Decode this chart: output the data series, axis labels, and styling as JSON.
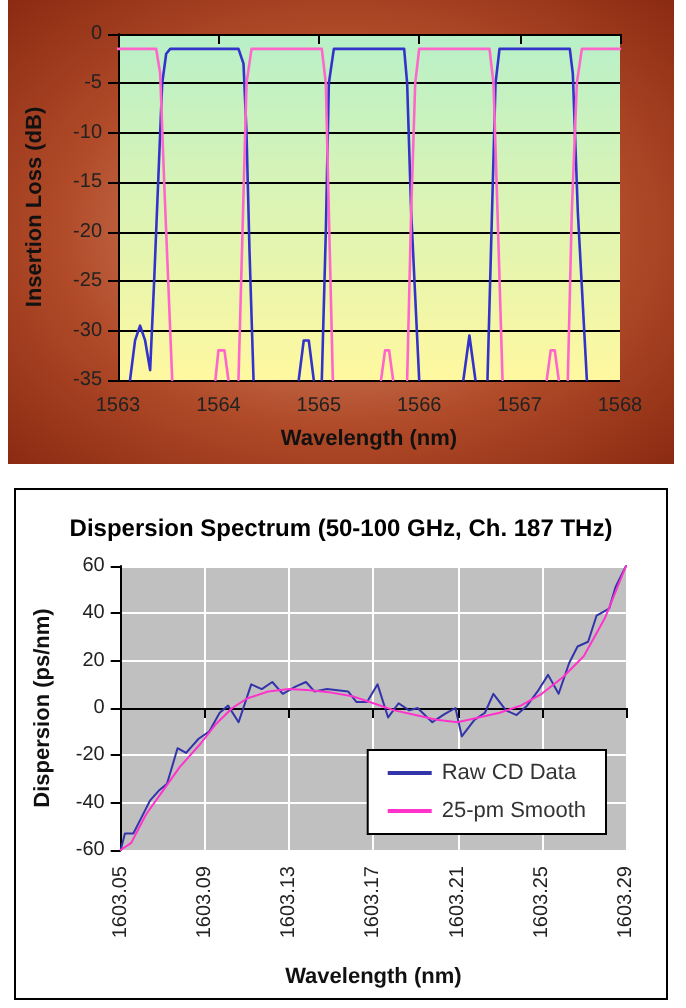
{
  "chart_data": [
    {
      "type": "line",
      "xlabel": "Wavelength (nm)",
      "ylabel": "Insertion Loss (dB)",
      "xlim": [
        1563,
        1568
      ],
      "ylim": [
        -35,
        0
      ],
      "xticks": [
        1563,
        1564,
        1565,
        1566,
        1567,
        1568
      ],
      "yticks": [
        -35,
        -30,
        -25,
        -20,
        -15,
        -10,
        -5,
        0
      ],
      "grid": "y",
      "legend": false,
      "marker": "none",
      "line_style": "solid",
      "series": [
        {
          "color": "#3333cc",
          "x": [
            1563.12,
            1563.17,
            1563.22,
            1563.27,
            1563.32,
            1563.36,
            1563.4,
            1563.44,
            1563.48,
            1563.52,
            1564.2,
            1564.25,
            1564.28,
            1564.31,
            1564.35,
            1564.5,
            1564.8,
            1564.85,
            1564.9,
            1564.95,
            1565.0,
            1565.03,
            1565.07,
            1565.1,
            1565.15,
            1565.85,
            1565.88,
            1565.92,
            1566.0,
            1566.2,
            1566.44,
            1566.5,
            1566.56,
            1566.6,
            1566.68,
            1566.72,
            1566.76,
            1566.8,
            1567.5,
            1567.53,
            1567.58,
            1567.67
          ],
          "values": [
            -35,
            -31,
            -29.5,
            -31,
            -34,
            -25,
            -15,
            -5,
            -2,
            -1.5,
            -1.5,
            -3,
            -10,
            -22,
            -35,
            null,
            -35,
            -31,
            -31,
            -35,
            null,
            -35,
            -20,
            -5,
            -1.5,
            -1.5,
            -5,
            -18,
            -35,
            null,
            -35,
            -30.5,
            -35,
            null,
            -35,
            -20,
            -5,
            -1.5,
            -1.5,
            -4,
            -18,
            -35
          ]
        },
        {
          "color": "#ff66cc",
          "x": [
            1563,
            1563.38,
            1563.42,
            1563.46,
            1563.54,
            1563.7,
            1563.97,
            1564.0,
            1564.06,
            1564.1,
            1564.15,
            1564.2,
            1564.24,
            1564.28,
            1564.33,
            1565.03,
            1565.07,
            1565.1,
            1565.14,
            1565.4,
            1565.62,
            1565.66,
            1565.7,
            1565.74,
            1565.8,
            1565.88,
            1565.92,
            1565.96,
            1566.0,
            1566.7,
            1566.74,
            1566.78,
            1566.83,
            1567.0,
            1567.27,
            1567.31,
            1567.35,
            1567.39,
            1567.45,
            1567.48,
            1567.52,
            1567.57,
            1567.62,
            1568
          ],
          "values": [
            -1.5,
            -1.5,
            -4,
            -15,
            -35,
            null,
            -35,
            -32,
            -32,
            -35,
            null,
            -35,
            -20,
            -5,
            -1.5,
            -1.5,
            -5,
            -18,
            -35,
            null,
            -35,
            -32,
            -32,
            -35,
            null,
            -35,
            -18,
            -5,
            -1.5,
            -1.5,
            -5,
            -18,
            -35,
            null,
            -35,
            -32,
            -32,
            -35,
            null,
            -35,
            -18,
            -5,
            -1.5,
            -1.5
          ]
        }
      ]
    },
    {
      "type": "line",
      "title": "Dispersion Spectrum (50-100 GHz, Ch. 187 THz)",
      "xlabel": "Wavelength (nm)",
      "ylabel": "Dispersion (ps/nm)",
      "xlim": [
        1603.05,
        1603.29
      ],
      "ylim": [
        -60,
        60
      ],
      "xticks": [
        1603.05,
        1603.09,
        1603.13,
        1603.17,
        1603.21,
        1603.25,
        1603.29
      ],
      "yticks": [
        -60,
        -40,
        -20,
        0,
        20,
        40,
        60
      ],
      "grid": true,
      "legend": "bottom right",
      "marker": "none",
      "line_style": "solid",
      "series": [
        {
          "name": "Raw CD Data",
          "color": "#3333aa",
          "x": [
            1603.05,
            1603.052,
            1603.056,
            1603.06,
            1603.064,
            1603.068,
            1603.072,
            1603.077,
            1603.081,
            1603.084,
            1603.087,
            1603.092,
            1603.097,
            1603.101,
            1603.106,
            1603.112,
            1603.117,
            1603.122,
            1603.127,
            1603.133,
            1603.138,
            1603.142,
            1603.148,
            1603.153,
            1603.158,
            1603.162,
            1603.167,
            1603.172,
            1603.177,
            1603.182,
            1603.187,
            1603.191,
            1603.198,
            1603.204,
            1603.209,
            1603.212,
            1603.218,
            1603.223,
            1603.227,
            1603.233,
            1603.238,
            1603.243,
            1603.248,
            1603.253,
            1603.258,
            1603.263,
            1603.267,
            1603.272,
            1603.276,
            1603.282,
            1603.285,
            1603.29
          ],
          "values": [
            -60,
            -53,
            -53,
            -46,
            -39,
            -35,
            -32,
            -17,
            -19,
            -16,
            -13,
            -10,
            -2,
            1,
            -6,
            10,
            8,
            11,
            6,
            9,
            11,
            7,
            8,
            7.5,
            7,
            2.5,
            2.5,
            10,
            -4,
            2,
            -1,
            0,
            -6,
            -2.5,
            0,
            -12,
            -5,
            -2,
            6,
            -1,
            -3,
            1,
            7,
            14,
            6,
            19,
            26,
            28,
            39,
            42,
            51,
            60
          ]
        },
        {
          "name": "25-pm Smooth",
          "color": "#ff33cc",
          "x": [
            1603.05,
            1603.055,
            1603.062,
            1603.07,
            1603.078,
            1603.088,
            1603.095,
            1603.103,
            1603.11,
            1603.12,
            1603.13,
            1603.14,
            1603.15,
            1603.16,
            1603.17,
            1603.18,
            1603.19,
            1603.2,
            1603.21,
            1603.22,
            1603.23,
            1603.24,
            1603.25,
            1603.26,
            1603.27,
            1603.28,
            1603.29
          ],
          "values": [
            -60,
            -57,
            -45,
            -35,
            -25,
            -15,
            -7,
            0,
            4,
            7,
            8,
            7.5,
            6.5,
            5,
            2,
            -1,
            -3,
            -5,
            -6,
            -4,
            -2,
            1,
            6,
            13,
            22,
            38,
            60
          ]
        }
      ]
    }
  ]
}
